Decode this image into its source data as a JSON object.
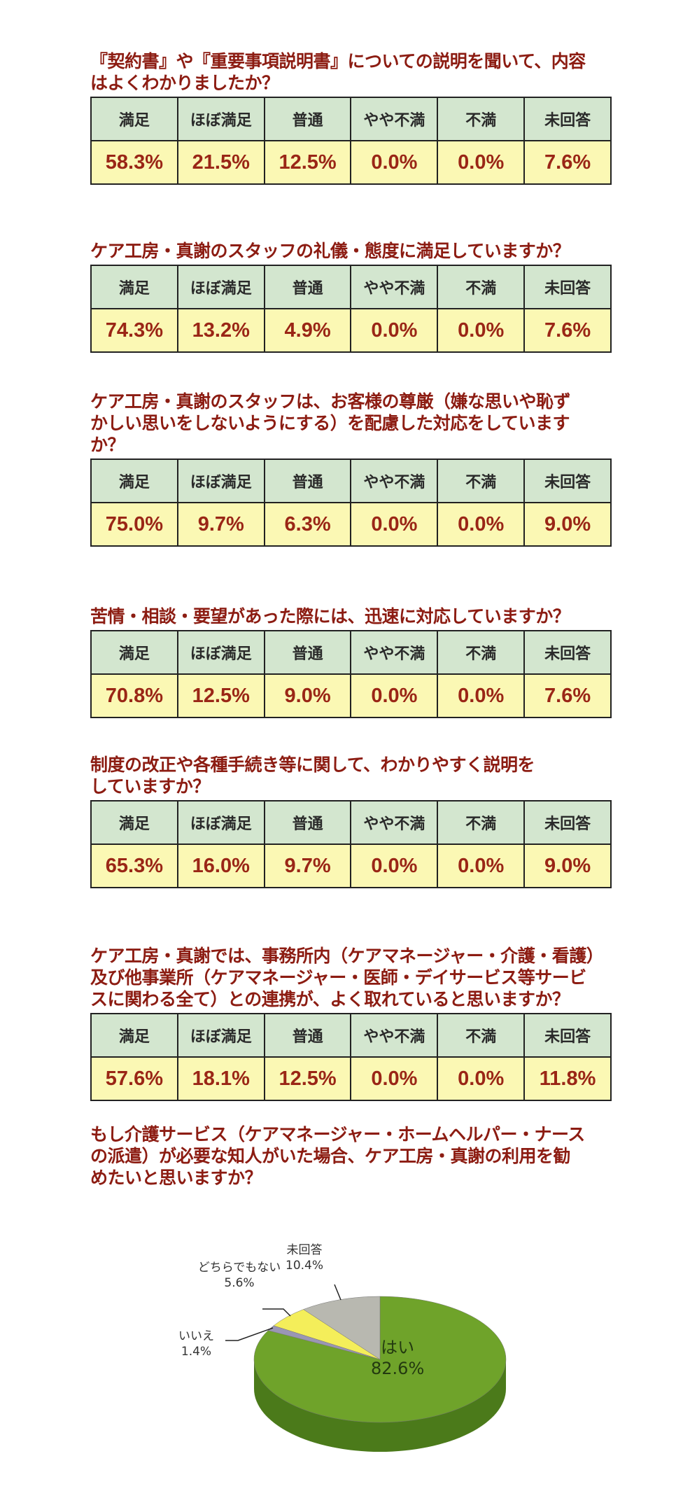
{
  "headers": [
    "満足",
    "ほぼ満足",
    "普通",
    "やや不満",
    "不満",
    "未回答"
  ],
  "questions": [
    {
      "title_lines": [
        "『契約書』や『重要事項説明書』についての説明を聞いて、内容",
        "はよくわかりましたか？"
      ],
      "values": [
        "58.3%",
        "21.5%",
        "12.5%",
        "0.0%",
        "0.0%",
        "7.6%"
      ]
    },
    {
      "title_lines": [
        "ケア工房・真謝のスタッフの礼儀・態度に満足していますか？"
      ],
      "values": [
        "74.3%",
        "13.2%",
        "4.9%",
        "0.0%",
        "0.0%",
        "7.6%"
      ]
    },
    {
      "title_lines": [
        "ケア工房・真謝のスタッフは、お客様の尊厳（嫌な思いや恥ず",
        "かしい思いをしないようにする）を配慮した対応をしています",
        "か？"
      ],
      "values": [
        "75.0%",
        "9.7%",
        "6.3%",
        "0.0%",
        "0.0%",
        "9.0%"
      ]
    },
    {
      "title_lines": [
        "苦情・相談・要望があった際には、迅速に対応していますか？"
      ],
      "values": [
        "70.8%",
        "12.5%",
        "9.0%",
        "0.0%",
        "0.0%",
        "7.6%"
      ]
    },
    {
      "title_lines": [
        "制度の改正や各種手続き等に関して、わかりやすく説明を",
        "していますか？"
      ],
      "values": [
        "65.3%",
        "16.0%",
        "9.7%",
        "0.0%",
        "0.0%",
        "9.0%"
      ]
    },
    {
      "title_lines": [
        "ケア工房・真謝では、事務所内（ケアマネージャー・介護・看護）",
        "及び他事業所（ケアマネージャー・医師・デイサービス等サービ",
        "スに関わる全て）との連携が、よく取れていると思いますか？"
      ],
      "values": [
        "57.6%",
        "18.1%",
        "12.5%",
        "0.0%",
        "0.0%",
        "11.8%"
      ]
    }
  ],
  "chart_data": {
    "type": "pie",
    "title_lines": [
      "もし介護サービス（ケアマネージャー・ホームヘルパー・ナース",
      "の派遣）が必要な知人がいた場合、ケア工房・真謝の利用を勧",
      "めたいと思いますか？"
    ],
    "slices": [
      {
        "label": "はい",
        "value": 82.6,
        "display": "82.6%",
        "color": "#6fa32a"
      },
      {
        "label": "いいえ",
        "value": 1.4,
        "display": "1.4%",
        "color": "#9a96b4"
      },
      {
        "label": "どちらでもない",
        "value": 5.6,
        "display": "5.6%",
        "color": "#f4ee5a"
      },
      {
        "label": "未回答",
        "value": 10.4,
        "display": "10.4%",
        "color": "#b8b8b0"
      }
    ]
  }
}
